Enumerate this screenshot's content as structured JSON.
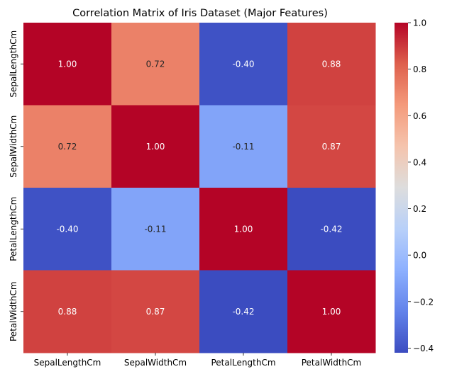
{
  "chart_data": {
    "type": "heatmap",
    "title": "Correlation Matrix of Iris Dataset (Major Features)",
    "x_labels": [
      "SepalLengthCm",
      "SepalWidthCm",
      "PetalLengthCm",
      "PetalWidthCm"
    ],
    "y_labels": [
      "SepalLengthCm",
      "SepalWidthCm",
      "PetalLengthCm",
      "PetalWidthCm"
    ],
    "values": [
      [
        1.0,
        0.72,
        -0.4,
        0.88
      ],
      [
        0.72,
        1.0,
        -0.11,
        0.87
      ],
      [
        -0.4,
        -0.11,
        1.0,
        -0.42
      ],
      [
        0.88,
        0.87,
        -0.42,
        1.0
      ]
    ],
    "cell_labels": [
      [
        "1.00",
        "0.72",
        "-0.40",
        "0.88"
      ],
      [
        "0.72",
        "1.00",
        "-0.11",
        "0.87"
      ],
      [
        "-0.40",
        "-0.11",
        "1.00",
        "-0.42"
      ],
      [
        "0.88",
        "0.87",
        "-0.42",
        "1.00"
      ]
    ],
    "colormap": "coolwarm",
    "vmin": -0.42,
    "vmax": 1.0,
    "colorbar_ticks": [
      1.0,
      0.8,
      0.6,
      0.4,
      0.2,
      0.0,
      -0.2,
      -0.4
    ],
    "colorbar_tick_labels": [
      "1.0",
      "0.8",
      "0.6",
      "0.4",
      "0.2",
      "0.0",
      "−0.2",
      "−0.4"
    ]
  }
}
